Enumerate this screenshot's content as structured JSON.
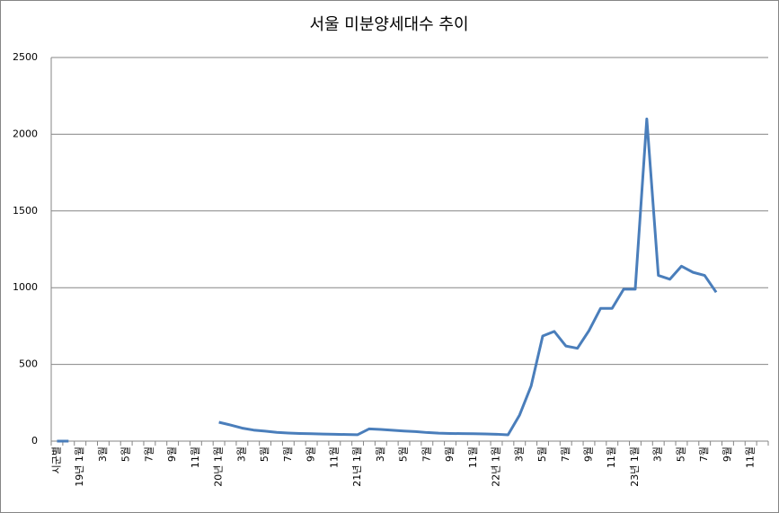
{
  "chart_data": {
    "type": "line",
    "title": "서울 미분양세대수 추이",
    "categories": [
      "시군별",
      null,
      "19년 1월",
      null,
      "3월",
      null,
      "5월",
      null,
      "7월",
      null,
      "9월",
      null,
      "11월",
      null,
      "20년 1월",
      null,
      "3월",
      null,
      "5월",
      null,
      "7월",
      null,
      "9월",
      null,
      "11월",
      null,
      "21년 1월",
      null,
      "3월",
      null,
      "5월",
      null,
      "7월",
      null,
      "9월",
      null,
      "11월",
      null,
      "22년 1월",
      null,
      "3월",
      null,
      "5월",
      null,
      "7월",
      null,
      "9월",
      null,
      "11월",
      null,
      "23년 1월",
      null,
      "3월",
      null,
      "5월",
      null,
      "7월",
      null,
      "9월",
      null,
      "11월",
      null
    ],
    "series": [
      {
        "color": "#4a7ebb",
        "values": [
          0,
          0,
          null,
          null,
          null,
          null,
          null,
          null,
          null,
          null,
          null,
          null,
          null,
          null,
          123,
          105,
          85,
          72,
          65,
          57,
          53,
          50,
          48,
          46,
          45,
          43,
          42,
          80,
          76,
          71,
          66,
          62,
          56,
          52,
          50,
          49,
          48,
          47,
          45,
          41,
          170,
          360,
          685,
          715,
          620,
          605,
          720,
          865,
          865,
          990,
          990,
          2100,
          1080,
          1055,
          1140,
          1100,
          1080,
          970,
          null,
          null,
          null,
          null
        ]
      }
    ],
    "ylim": [
      0,
      2500
    ],
    "yticks": [
      0,
      500,
      1000,
      1500,
      2000,
      2500
    ],
    "grid": true
  }
}
